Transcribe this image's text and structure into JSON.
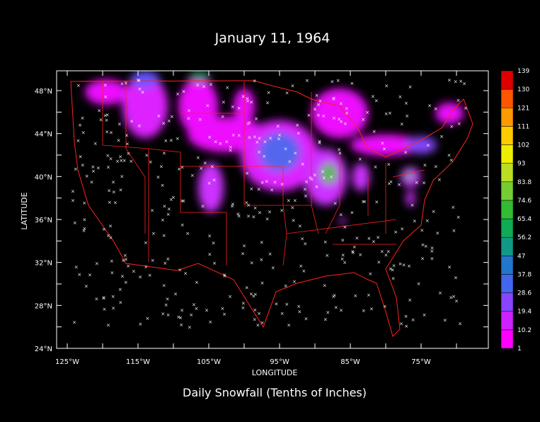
{
  "title": "January 11, 1964",
  "x_axis": {
    "label": "LONGITUDE",
    "ticks": [
      "125°W",
      "115°W",
      "105°W",
      "95°W",
      "85°W",
      "75°W"
    ]
  },
  "y_axis": {
    "label": "LATITUDE",
    "ticks": [
      "24°N",
      "28°N",
      "32°N",
      "36°N",
      "40°N",
      "44°N",
      "48°N"
    ]
  },
  "colorbar": {
    "labels": [
      1,
      10.2,
      19.4,
      28.6,
      37.8,
      47,
      56.2,
      65.4,
      74.6,
      83.8,
      93,
      102,
      111,
      121,
      130,
      139
    ],
    "colors": [
      "#ff00ff",
      "#cc22ff",
      "#8844ff",
      "#4466ee",
      "#2277cc",
      "#119988",
      "#11aa55",
      "#33bb33",
      "#77cc33",
      "#bbdd22",
      "#eeee00",
      "#ffcc00",
      "#ff9900",
      "#ff5500",
      "#dd0000"
    ]
  },
  "caption": "Daily Snowfall (Tenths of Inches)"
}
